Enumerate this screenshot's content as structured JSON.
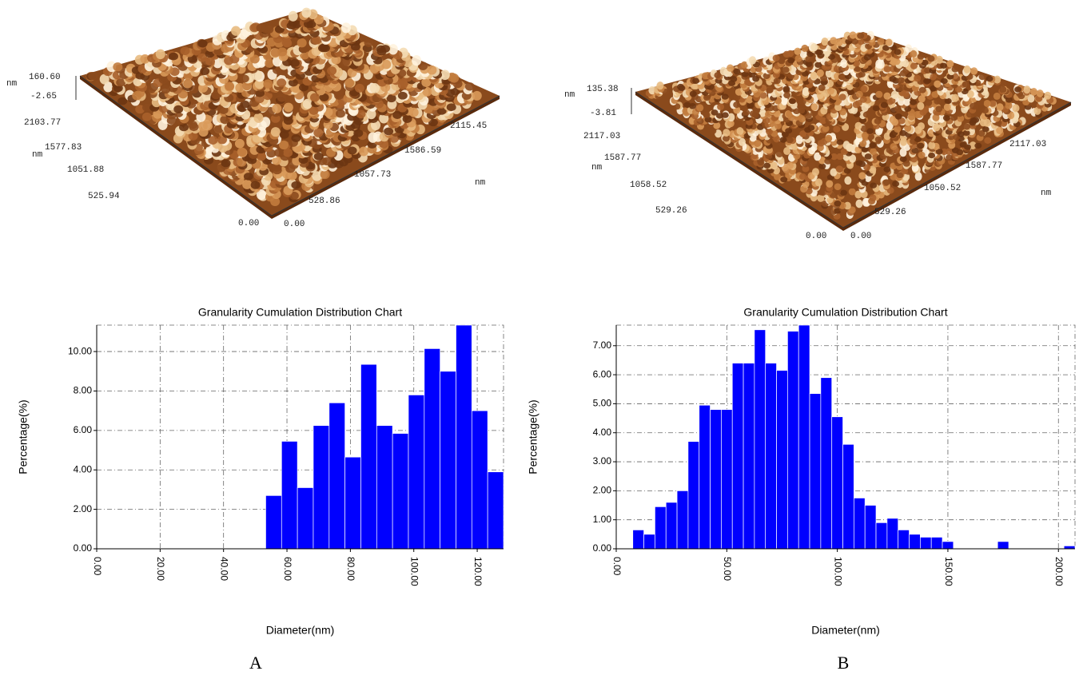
{
  "chart_data": [
    {
      "type": "histogram",
      "title": "Granularity Cumulation Distribution  Chart",
      "x_label": "Diameter(nm)",
      "y_label": "Percentage(%)",
      "color": "#0000ff",
      "grid": true,
      "bins": [
        53.3,
        58.3,
        63.3,
        68.3,
        73.3,
        78.3,
        83.3,
        88.3,
        93.3,
        98.3,
        103.3,
        108.3,
        113.3,
        118.3,
        123.3,
        128.3
      ],
      "values": [
        2.7,
        5.45,
        3.1,
        6.25,
        7.4,
        4.65,
        9.35,
        6.25,
        5.85,
        7.8,
        10.15,
        9.0,
        11.34,
        7.0,
        3.9
      ],
      "xlim": [
        0,
        128.3
      ],
      "ylim": [
        0,
        11.34
      ],
      "xticks": [
        {
          "value": 0,
          "label": "0.00"
        },
        {
          "value": 20,
          "label": "20.00"
        },
        {
          "value": 40,
          "label": "40.00"
        },
        {
          "value": 60,
          "label": "60.00"
        },
        {
          "value": 80,
          "label": "80.00"
        },
        {
          "value": 100,
          "label": "100.00"
        },
        {
          "value": 120,
          "label": "120.00"
        }
      ],
      "yticks": [
        {
          "value": 0,
          "label": "0.00"
        },
        {
          "value": 2,
          "label": "2.00"
        },
        {
          "value": 4,
          "label": "4.00"
        },
        {
          "value": 6,
          "label": "6.00"
        },
        {
          "value": 8,
          "label": "8.00"
        },
        {
          "value": 10,
          "label": "10.00"
        }
      ]
    },
    {
      "type": "histogram",
      "title": "Granularity Cumulation Distribution  Chart",
      "x_label": "Diameter(nm)",
      "y_label": "Percentage(%)",
      "color": "#0000ff",
      "grid": true,
      "bins": [
        7.5,
        12.5,
        17.5,
        22.5,
        27.5,
        32.5,
        37.5,
        42.5,
        47.5,
        52.5,
        57.5,
        62.5,
        67.5,
        72.5,
        77.5,
        82.5,
        87.5,
        92.5,
        97.5,
        102.5,
        107.5,
        112.5,
        117.5,
        122.5,
        127.5,
        132.5,
        137.5,
        142.5,
        147.5,
        152.5,
        157.5,
        162.5,
        167.5,
        172.5,
        177.5,
        182.5,
        187.5,
        192.5,
        197.5,
        202.5,
        207.5
      ],
      "values": [
        0.65,
        0.5,
        1.45,
        1.6,
        2.0,
        3.7,
        4.95,
        4.8,
        4.8,
        6.4,
        6.4,
        7.55,
        6.4,
        6.15,
        7.5,
        7.71,
        5.35,
        5.9,
        4.55,
        3.6,
        1.75,
        1.5,
        0.9,
        1.05,
        0.65,
        0.5,
        0.4,
        0.4,
        0.25,
        0,
        0,
        0,
        0,
        0.25,
        0,
        0,
        0,
        0,
        0,
        0.1
      ],
      "xlim": [
        0,
        207.5
      ],
      "ylim": [
        0,
        7.71
      ],
      "xticks": [
        {
          "value": 0,
          "label": "0.00"
        },
        {
          "value": 50,
          "label": "50.00"
        },
        {
          "value": 100,
          "label": "100.00"
        },
        {
          "value": 150,
          "label": "150.00"
        },
        {
          "value": 200,
          "label": "200.00"
        }
      ],
      "yticks": [
        {
          "value": 0,
          "label": "0.00"
        },
        {
          "value": 1,
          "label": "1.00"
        },
        {
          "value": 2,
          "label": "2.00"
        },
        {
          "value": 3,
          "label": "3.00"
        },
        {
          "value": 4,
          "label": "4.00"
        },
        {
          "value": 5,
          "label": "5.00"
        },
        {
          "value": 6,
          "label": "6.00"
        },
        {
          "value": 7,
          "label": "7.00"
        }
      ]
    }
  ],
  "surfaces": [
    {
      "labels": [
        "nm",
        "160.60",
        "-2.65",
        "2103.77",
        "1577.83",
        "nm",
        "1051.88",
        "525.94",
        "0.00",
        "0.00",
        "528.86",
        "1057.73",
        "1586.59",
        "2115.45",
        "nm"
      ]
    },
    {
      "labels": [
        "nm",
        "135.38",
        "-3.81",
        "2117.03",
        "1587.77",
        "nm",
        "1058.52",
        "529.26",
        "0.00",
        "0.00",
        "529.26",
        "1050.52",
        "1587.77",
        "2117.03",
        "nm"
      ]
    }
  ],
  "panel_labels": [
    "A",
    "B"
  ]
}
